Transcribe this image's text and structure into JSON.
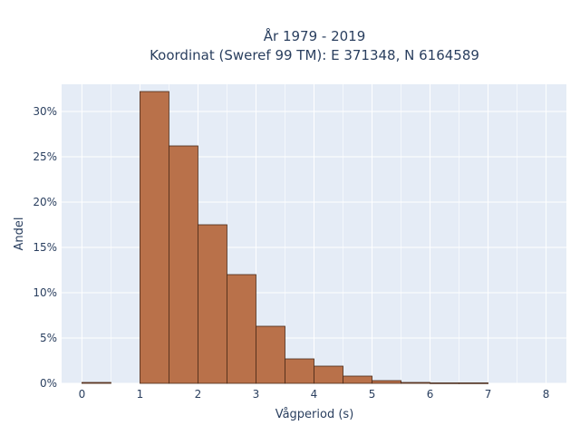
{
  "chart_data": {
    "type": "bar",
    "title_line1": "År 1979 - 2019",
    "title_line2": "Koordinat (Sweref 99 TM): E 371348, N 6164589",
    "xlabel": "Vågperiod (s)",
    "ylabel": "Andel",
    "xlim": [
      -0.35,
      8.35
    ],
    "ylim": [
      0,
      33
    ],
    "x_ticks": [
      0,
      1,
      2,
      3,
      4,
      5,
      6,
      7,
      8
    ],
    "x_tick_labels": [
      "0",
      "1",
      "2",
      "3",
      "4",
      "5",
      "6",
      "7",
      "8"
    ],
    "y_ticks": [
      0,
      5,
      10,
      15,
      20,
      25,
      30
    ],
    "y_tick_labels": [
      "0%",
      "5%",
      "10%",
      "15%",
      "20%",
      "25%",
      "30%"
    ],
    "bin_width": 0.5,
    "bins": [
      {
        "start": 0.0,
        "value": 0.1
      },
      {
        "start": 0.5,
        "value": 0
      },
      {
        "start": 1.0,
        "value": 32.2
      },
      {
        "start": 1.5,
        "value": 26.2
      },
      {
        "start": 2.0,
        "value": 17.5
      },
      {
        "start": 2.5,
        "value": 12.0
      },
      {
        "start": 3.0,
        "value": 6.3
      },
      {
        "start": 3.5,
        "value": 2.7
      },
      {
        "start": 4.0,
        "value": 1.9
      },
      {
        "start": 4.5,
        "value": 0.8
      },
      {
        "start": 5.0,
        "value": 0.3
      },
      {
        "start": 5.5,
        "value": 0.1
      },
      {
        "start": 6.0,
        "value": 0.05
      },
      {
        "start": 6.5,
        "value": 0.05
      }
    ],
    "bar_color": "#b9714a",
    "bar_edge_color": "#4a2a18",
    "plot_bg_color": "#e5ecf6",
    "grid": true
  }
}
